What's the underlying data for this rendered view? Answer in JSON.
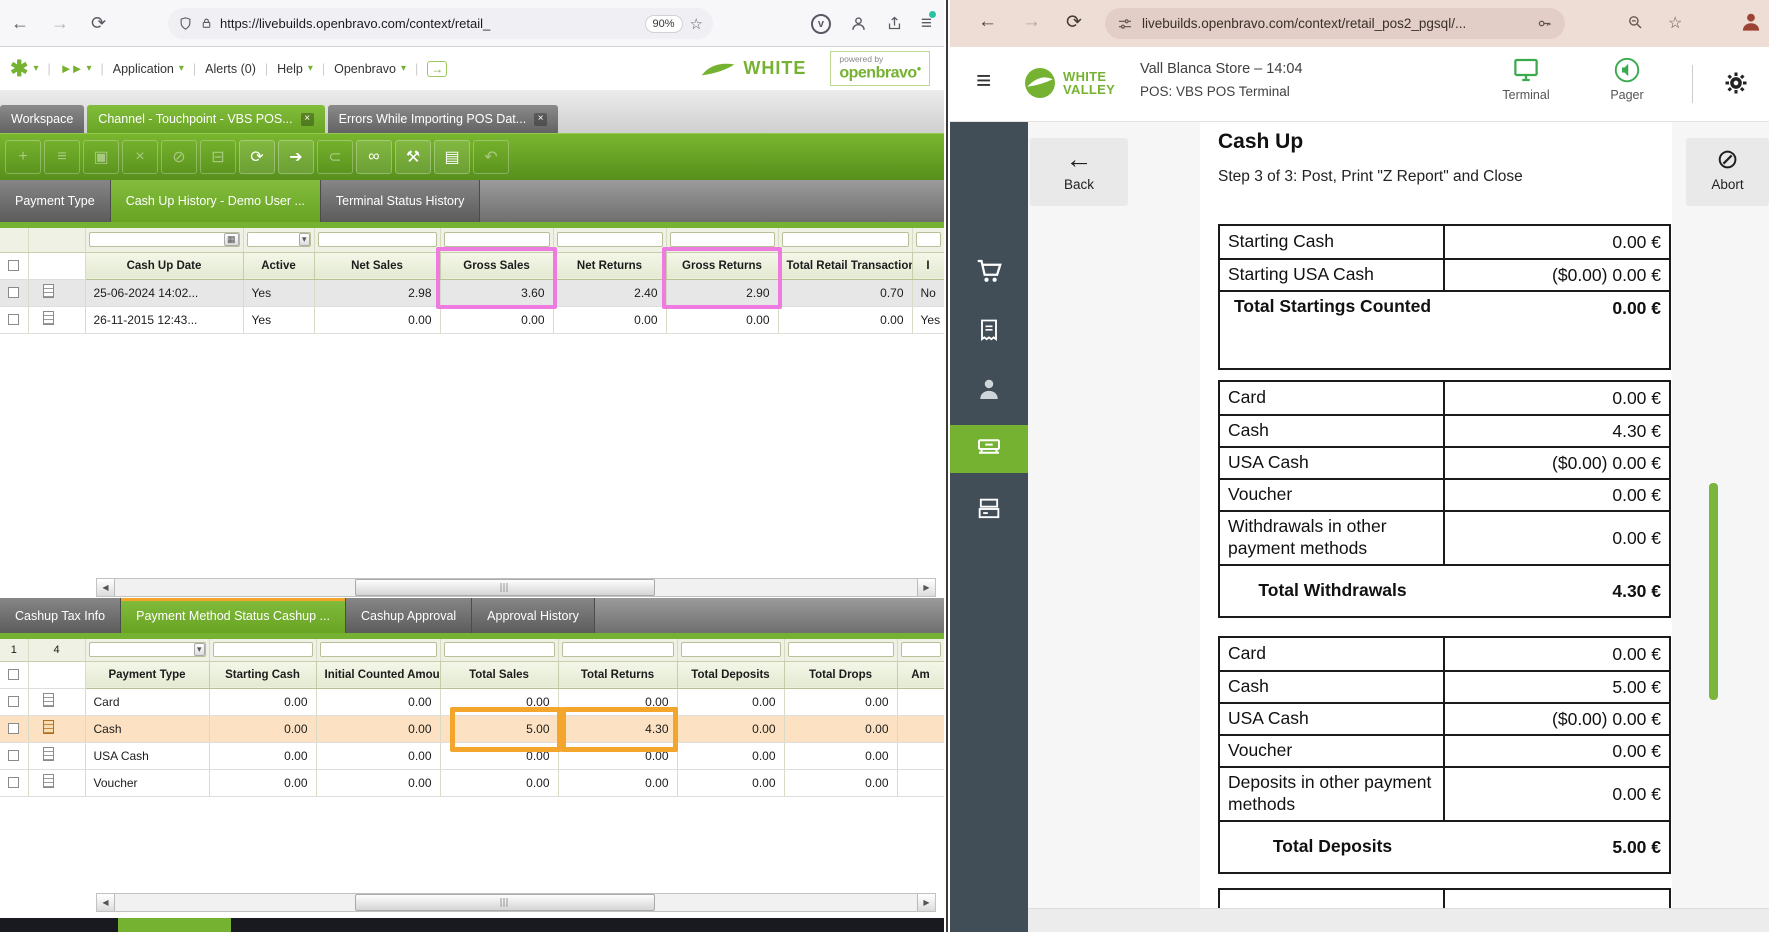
{
  "colors": {
    "ob-green": "#76b231",
    "pink-highlight": "#ee7be0",
    "orange-highlight": "#f3a52c",
    "row-highlight": "#fce2c2",
    "pos-sidebar": "#414e57",
    "pos-green": "#3ba94e"
  },
  "glyphs": {
    "back": "←",
    "forward": "→",
    "reload": "⟳",
    "star": "☆",
    "hamburger": "≡",
    "caret": "▾",
    "calendar": "▦",
    "scroll_left": "◀",
    "scroll_right": "▶",
    "abort": "⊘",
    "pocket": "v",
    "exit": "→",
    "asterisk": "✱",
    "fastforward": "►►",
    "gear_label": ""
  },
  "bo": {
    "browser": {
      "url": "https://livebuilds.openbravo.com/context/retail_",
      "zoom_badge": "90%"
    },
    "menu": {
      "application": "Application",
      "alerts": "Alerts (0)",
      "help": "Help",
      "openbravo": "Openbravo"
    },
    "brand": "WHITE",
    "powered_by_line1": "powered by",
    "powered_by_line2": "openbravo",
    "window_tabs": [
      {
        "label": "Workspace",
        "close": false,
        "active": false
      },
      {
        "label": "Channel - Touchpoint - VBS POS...",
        "close": true,
        "active": true
      },
      {
        "label": "Errors While Importing POS Dat...",
        "close": true,
        "active": false
      }
    ],
    "toolbar": [
      {
        "name": "new-record-icon",
        "glyph": "+",
        "active": false
      },
      {
        "name": "grid-view-icon",
        "glyph": "≡",
        "active": false
      },
      {
        "name": "save-icon",
        "glyph": "▣",
        "active": false
      },
      {
        "name": "save-close-icon",
        "glyph": "×",
        "active": false
      },
      {
        "name": "cancel-icon",
        "glyph": "⊘",
        "active": false
      },
      {
        "name": "delete-icon",
        "glyph": "⊟",
        "active": false
      },
      {
        "name": "refresh-icon",
        "glyph": "⟳",
        "active": true
      },
      {
        "name": "export-icon",
        "glyph": "➔",
        "active": true
      },
      {
        "name": "attachment-icon",
        "glyph": "⊂",
        "active": false
      },
      {
        "name": "link-icon",
        "glyph": "∞",
        "active": true
      },
      {
        "name": "audit-icon",
        "glyph": "⚒",
        "active": true
      },
      {
        "name": "form-view-icon",
        "glyph": "▤",
        "active": true
      },
      {
        "name": "undo-icon",
        "glyph": "↶",
        "active": false
      }
    ],
    "subtabs": [
      {
        "label": "Payment Type",
        "active": false
      },
      {
        "label": "Cash Up History - Demo User ...",
        "active": true
      },
      {
        "label": "Terminal Status History",
        "active": false
      }
    ],
    "grid1": {
      "headers": [
        "Cash Up Date",
        "Active",
        "Net Sales",
        "Gross Sales",
        "Net Returns",
        "Gross Returns",
        "Total Retail Transactions",
        "I"
      ],
      "rows": [
        [
          "25-06-2024 14:02...",
          "Yes",
          "2.98",
          "3.60",
          "2.40",
          "2.90",
          "0.70",
          "No"
        ],
        [
          "26-11-2015 12:43...",
          "Yes",
          "0.00",
          "0.00",
          "0.00",
          "0.00",
          "0.00",
          "Yes"
        ]
      ]
    },
    "bottom_tabs": [
      {
        "label": "Cashup Tax Info",
        "active": false
      },
      {
        "label": "Payment Method Status Cashup ...",
        "active": true
      },
      {
        "label": "Cashup Approval",
        "active": false
      },
      {
        "label": "Approval History",
        "active": false
      }
    ],
    "grid2": {
      "count": [
        "1",
        "4"
      ],
      "headers": [
        "Payment Type",
        "Starting Cash",
        "Initial Counted Amount",
        "Total Sales",
        "Total Returns",
        "Total Deposits",
        "Total Drops",
        "Am"
      ],
      "rows": [
        {
          "name": "Card",
          "values": [
            "0.00",
            "0.00",
            "0.00",
            "0.00",
            "0.00",
            "0.00"
          ],
          "highlighted": false
        },
        {
          "name": "Cash",
          "values": [
            "0.00",
            "0.00",
            "5.00",
            "4.30",
            "0.00",
            "0.00"
          ],
          "highlighted": true
        },
        {
          "name": "USA Cash",
          "values": [
            "0.00",
            "0.00",
            "0.00",
            "0.00",
            "0.00",
            "0.00"
          ],
          "highlighted": false
        },
        {
          "name": "Voucher",
          "values": [
            "0.00",
            "0.00",
            "0.00",
            "0.00",
            "0.00",
            "0.00"
          ],
          "highlighted": false
        }
      ]
    }
  },
  "pos": {
    "browser_url": "livebuilds.openbravo.com/context/retail_pos2_pgsql/...",
    "brand_top": "WHITE",
    "brand_bottom": "VALLEY",
    "store_line1": "Vall Blanca Store – 14:04",
    "store_line2": "POS: VBS POS Terminal",
    "terminal_label": "Terminal",
    "pager_label": "Pager",
    "back_label": "Back",
    "abort_label": "Abort",
    "title": "Cash Up",
    "subtitle": "Step 3 of 3: Post, Print \"Z Report\" and Close",
    "blocks": [
      {
        "rows": [
          {
            "label": "Starting Cash",
            "value": "0.00 €"
          },
          {
            "label": "Starting USA Cash",
            "value": "($0.00) 0.00 €"
          },
          {
            "label": "Total Startings Counted",
            "value": "0.00 €",
            "total": true
          }
        ]
      },
      {
        "rows": [
          {
            "label": "Card",
            "value": "0.00 €"
          },
          {
            "label": "Cash",
            "value": "4.30 €"
          },
          {
            "label": "USA Cash",
            "value": "($0.00) 0.00 €"
          },
          {
            "label": "Voucher",
            "value": "0.00 €"
          },
          {
            "label": "Withdrawals in other payment methods",
            "value": "0.00 €",
            "tall": true
          },
          {
            "label": "Total Withdrawals",
            "value": "4.30 €",
            "total": true,
            "boxed": true
          }
        ]
      },
      {
        "rows": [
          {
            "label": "Card",
            "value": "0.00 €"
          },
          {
            "label": "Cash",
            "value": "5.00 €"
          },
          {
            "label": "USA Cash",
            "value": "($0.00) 0.00 €"
          },
          {
            "label": "Voucher",
            "value": "0.00 €"
          },
          {
            "label": "Deposits in other payment methods",
            "value": "0.00 €",
            "tall": true
          },
          {
            "label": "Total Deposits",
            "value": "5.00 €",
            "total": true,
            "boxed": true
          }
        ]
      }
    ]
  }
}
